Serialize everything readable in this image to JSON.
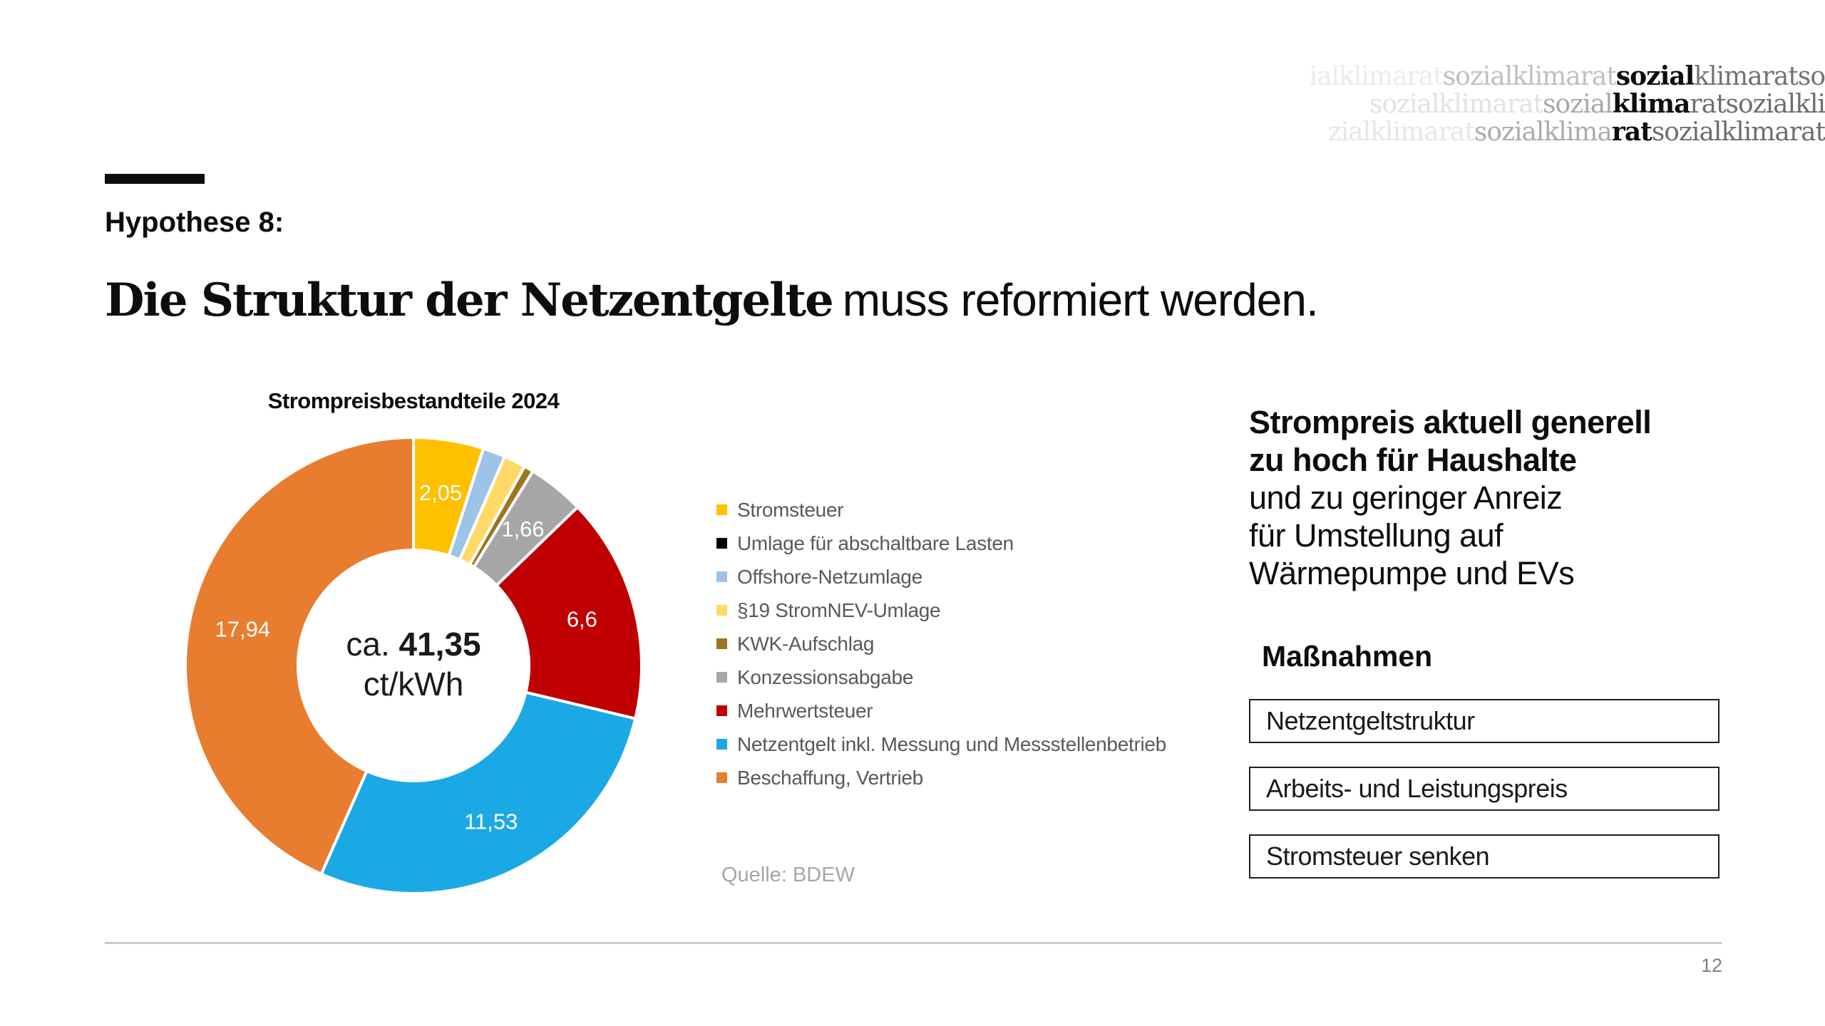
{
  "logo": {
    "lines": [
      {
        "segments": [
          {
            "text": "ialklimarat",
            "color": "#ebebeb",
            "bold": false
          },
          {
            "text": "sozialklimarat",
            "color": "#bfbfbf",
            "bold": false
          },
          {
            "text": "sozial",
            "color": "#0d0d0d",
            "bold": true
          },
          {
            "text": "klimaratso",
            "color": "#737373",
            "bold": false
          }
        ]
      },
      {
        "segments": [
          {
            "text": "sozialklimarat",
            "color": "#e2e2e2",
            "bold": false
          },
          {
            "text": "sozial",
            "color": "#a8a8a8",
            "bold": false
          },
          {
            "text": "klima",
            "color": "#0d0d0d",
            "bold": true
          },
          {
            "text": "ratsozialkli",
            "color": "#6e6e6e",
            "bold": false
          }
        ]
      },
      {
        "segments": [
          {
            "text": "zialklimarat",
            "color": "#e6e6e6",
            "bold": false
          },
          {
            "text": "sozialklima",
            "color": "#ababab",
            "bold": false
          },
          {
            "text": "rat",
            "color": "#0d0d0d",
            "bold": true
          },
          {
            "text": "sozialklimarat",
            "color": "#6e6e6e",
            "bold": false
          }
        ]
      }
    ]
  },
  "header": {
    "kicker": "Hypothese 8:",
    "title_emphasis": "Die Struktur der Netzentgelte",
    "title_rest": "muss reformiert werden."
  },
  "chart_data": {
    "type": "pie",
    "subtype": "donut",
    "title": "Strompreisbestandteile 2024",
    "total": 41.35,
    "unit": "ct/kWh",
    "center_label": {
      "prefix": "ca. ",
      "value": "41,35",
      "unit": "ct/kWh"
    },
    "legend_position": "right",
    "slices": [
      {
        "name": "Stromsteuer",
        "value": 2.05,
        "label": "2,05",
        "color": "#FFC000"
      },
      {
        "name": "Umlage für abschaltbare Lasten",
        "value": 0.003,
        "label": null,
        "color": "#000000"
      },
      {
        "name": "Offshore-Netzumlage",
        "value": 0.656,
        "label": null,
        "color": "#9DC3E6"
      },
      {
        "name": "§19 StromNEV-Umlage",
        "value": 0.643,
        "label": null,
        "color": "#FFD966"
      },
      {
        "name": "KWK-Aufschlag",
        "value": 0.275,
        "label": null,
        "color": "#9C7420"
      },
      {
        "name": "Konzessionsabgabe",
        "value": 1.66,
        "label": "1,66",
        "color": "#A6A6A6"
      },
      {
        "name": "Mehrwertsteuer",
        "value": 6.6,
        "label": "6,6",
        "color": "#C00000"
      },
      {
        "name": "Netzentgelt inkl. Messung und Messstellenbetrieb",
        "value": 11.53,
        "label": "11,53",
        "color": "#1BA9E5"
      },
      {
        "name": "Beschaffung, Vertrieb",
        "value": 17.94,
        "label": "17,94",
        "color": "#E87D2F"
      }
    ],
    "source": "Quelle: BDEW"
  },
  "insight": {
    "lines": [
      {
        "text": "Strompreis aktuell generell",
        "bold": true
      },
      {
        "text": "zu hoch für Haushalte",
        "bold": true
      },
      {
        "text": "und zu geringer Anreiz",
        "bold": false
      },
      {
        "text": "für Umstellung auf",
        "bold": false
      },
      {
        "text": "Wärmepumpe und EVs",
        "bold": false
      }
    ]
  },
  "measures": {
    "heading": "Maßnahmen",
    "items": [
      "Netzentgeltstruktur",
      "Arbeits- und Leistungspreis",
      "Stromsteuer senken"
    ]
  },
  "footer": {
    "page_number": "12"
  }
}
